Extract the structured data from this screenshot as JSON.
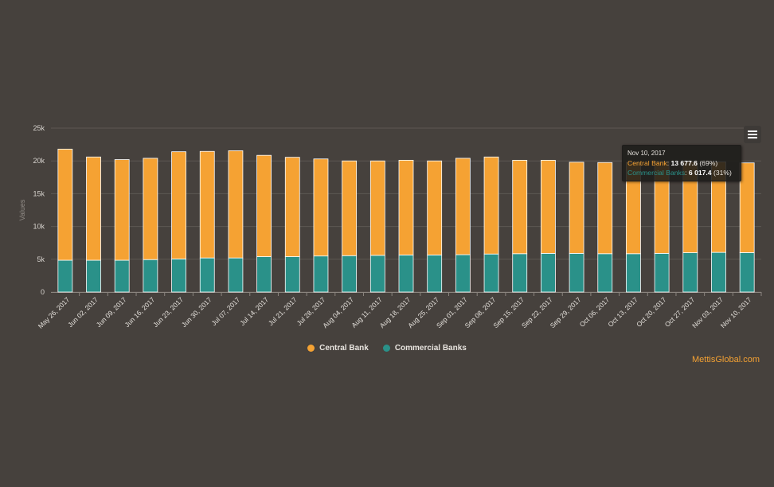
{
  "chart_data": {
    "type": "bar",
    "stacked": true,
    "ylabel": "Values",
    "xlabel": "",
    "ylim": [
      0,
      25000
    ],
    "yticks": [
      "0",
      "5k",
      "10k",
      "15k",
      "20k",
      "25k"
    ],
    "grid": true,
    "legend_position": "bottom-center",
    "categories": [
      "May 26, 2017",
      "Jun 02, 2017",
      "Jun 09, 2017",
      "Jun 16, 2017",
      "Jun 23, 2017",
      "Jun 30, 2017",
      "Jul 07, 2017",
      "Jul 14, 2017",
      "Jul 21, 2017",
      "Jul 28, 2017",
      "Aug 04, 2017",
      "Aug 11, 2017",
      "Aug 18, 2017",
      "Aug 25, 2017",
      "Sep 01, 2017",
      "Sep 08, 2017",
      "Sep 15, 2017",
      "Sep 22, 2017",
      "Sep 29, 2017",
      "Oct 06, 2017",
      "Oct 13, 2017",
      "Oct 20, 2017",
      "Oct 27, 2017",
      "Nov 03, 2017",
      "Nov 10, 2017"
    ],
    "series": [
      {
        "name": "Commercial Banks",
        "color": "#2a9189",
        "values": [
          4850,
          4850,
          4850,
          4950,
          5050,
          5200,
          5200,
          5400,
          5400,
          5500,
          5550,
          5600,
          5650,
          5650,
          5700,
          5800,
          5850,
          5900,
          5900,
          5850,
          5850,
          5900,
          6000,
          6050,
          6017.4
        ]
      },
      {
        "name": "Central Bank",
        "color": "#f5a233",
        "values": [
          16950,
          15750,
          15350,
          15450,
          16350,
          16250,
          16350,
          15450,
          15150,
          14800,
          14450,
          14400,
          14450,
          14350,
          14700,
          14800,
          14250,
          14200,
          13900,
          13900,
          13900,
          14000,
          13900,
          13800,
          13677.6
        ]
      }
    ]
  },
  "menu_icon": "hamburger-menu-icon",
  "legend": [
    {
      "label": "Central Bank",
      "color": "#f5a233"
    },
    {
      "label": "Commercial Banks",
      "color": "#2a9189"
    }
  ],
  "tooltip": {
    "date": "Nov 10, 2017",
    "line1_name": "Central Bank",
    "line1_value": "13 677.6",
    "line1_pct": "(69%)",
    "line2_name": "Commercial Banks",
    "line2_value": "6 017.4",
    "line2_pct": "(31%)"
  },
  "credit": "MettisGlobal.com"
}
